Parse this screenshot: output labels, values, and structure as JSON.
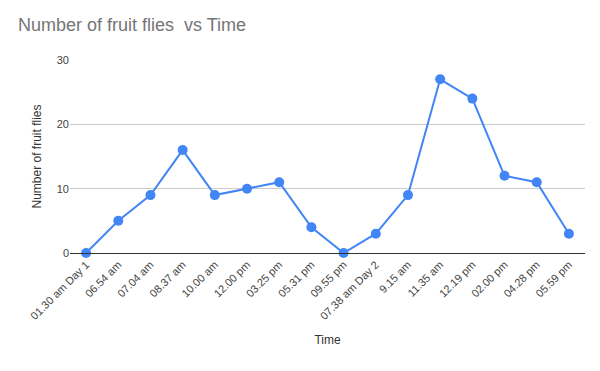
{
  "chart_data": {
    "type": "line",
    "title": "Number of fruit flies  vs Time",
    "x_label": "Time",
    "y_label": "Number of fruit flies",
    "categories": [
      "01.30 am Day 1",
      "06.54 am",
      "07.04 am",
      "08.37 am",
      "10.00 am",
      "12.00 pm",
      "03.25 pm",
      "05.31 pm",
      "09.55 pm",
      "07.38 am Day 2",
      "9.15 am",
      "11.35 am",
      "12.19 pm",
      "02.00 pm",
      "04.28 pm",
      "05.59 pm"
    ],
    "values": [
      0,
      5,
      9,
      16,
      9,
      10,
      11,
      4,
      0,
      3,
      9,
      27,
      24,
      12,
      11,
      3
    ],
    "color": "#4285f4",
    "marker": "circle",
    "ylim": [
      0,
      30
    ],
    "yticks": [
      0,
      10,
      20,
      30
    ],
    "grid": true
  }
}
